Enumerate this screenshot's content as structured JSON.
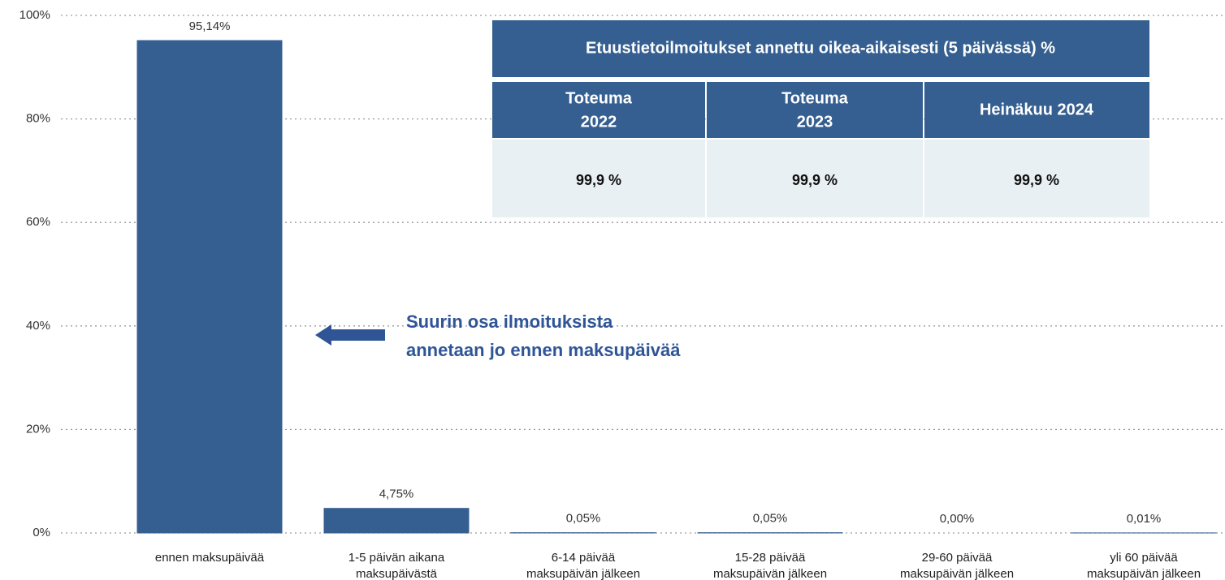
{
  "chart_data": {
    "type": "bar",
    "categories": [
      [
        "ennen maksupäivää"
      ],
      [
        "1-5 päivän aikana",
        "maksupäivästä"
      ],
      [
        "6-14 päivää",
        "maksupäivän jälkeen"
      ],
      [
        "15-28 päivää",
        "maksupäivän jälkeen"
      ],
      [
        "29-60 päivää",
        "maksupäivän jälkeen"
      ],
      [
        "yli 60 päivää",
        "maksupäivän jälkeen"
      ]
    ],
    "values": [
      95.14,
      4.75,
      0.05,
      0.05,
      0.0,
      0.01
    ],
    "value_labels": [
      "95,14%",
      "4,75%",
      "0,05%",
      "0,05%",
      "0,00%",
      "0,01%"
    ],
    "color": "#365f91",
    "ylim": [
      0,
      100
    ],
    "yticks": [
      {
        "value": 0,
        "label": "0%"
      },
      {
        "value": 20,
        "label": "20%"
      },
      {
        "value": 40,
        "label": "40%"
      },
      {
        "value": 60,
        "label": "60%"
      },
      {
        "value": 80,
        "label": "80%"
      },
      {
        "value": 100,
        "label": "100%"
      }
    ],
    "grid": true,
    "annotation": [
      "Suurin osa ilmoituksista",
      "annetaan jo ennen maksupäivää"
    ]
  },
  "table": {
    "title": "Etuustietoilmoitukset annettu oikea-aikaisesti (5 päivässä) %",
    "headers": [
      [
        "Toteuma",
        "2022"
      ],
      [
        "Toteuma",
        "2023"
      ],
      [
        "Heinäkuu 2024"
      ]
    ],
    "rows": [
      [
        "99,9 %",
        "99,9 %",
        "99,9 %"
      ]
    ]
  }
}
